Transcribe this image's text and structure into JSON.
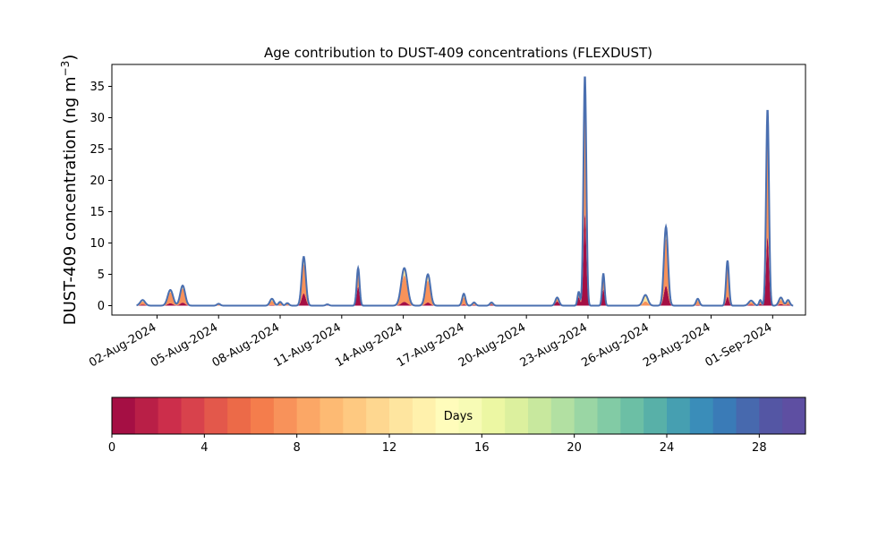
{
  "chart_data": {
    "type": "area",
    "title": "Age contribution to DUST-409 concentrations (FLEXDUST)",
    "ylabel_main": "DUST-409 concentration (ng m",
    "ylabel_sup": "−3",
    "ylabel_close": ")",
    "xlabel": "",
    "ylim": [
      -1.5,
      38.5
    ],
    "xlim_days": [
      -1.2,
      32.6
    ],
    "x_start_date": "2024-08-01",
    "yticks": [
      0,
      5,
      10,
      15,
      20,
      25,
      30,
      35
    ],
    "xticks": [
      {
        "day": 1,
        "label": "02-Aug-2024"
      },
      {
        "day": 4,
        "label": "05-Aug-2024"
      },
      {
        "day": 7,
        "label": "08-Aug-2024"
      },
      {
        "day": 10,
        "label": "11-Aug-2024"
      },
      {
        "day": 13,
        "label": "14-Aug-2024"
      },
      {
        "day": 16,
        "label": "17-Aug-2024"
      },
      {
        "day": 19,
        "label": "20-Aug-2024"
      },
      {
        "day": 22,
        "label": "23-Aug-2024"
      },
      {
        "day": 25,
        "label": "26-Aug-2024"
      },
      {
        "day": 28,
        "label": "29-Aug-2024"
      },
      {
        "day": 31,
        "label": "01-Sep-2024"
      }
    ],
    "total_line_color": "#4a6fb0",
    "peaks": [
      {
        "date": "2024-08-02",
        "day": 0.3,
        "total": 0.9,
        "width": 0.12,
        "age_mix": [
          0.2,
          0.5,
          0.3
        ]
      },
      {
        "date": "2024-08-03",
        "day": 1.65,
        "total": 2.5,
        "width": 0.13,
        "age_mix": [
          0.15,
          0.7,
          0.15
        ]
      },
      {
        "date": "2024-08-04",
        "day": 2.25,
        "total": 3.2,
        "width": 0.12,
        "age_mix": [
          0.15,
          0.7,
          0.15
        ]
      },
      {
        "date": "2024-08-05",
        "day": 4.0,
        "total": 0.3,
        "width": 0.08,
        "age_mix": [
          0.0,
          0.6,
          0.4
        ]
      },
      {
        "date": "2024-08-08",
        "day": 6.6,
        "total": 1.1,
        "width": 0.1,
        "age_mix": [
          0.1,
          0.6,
          0.3
        ]
      },
      {
        "date": "2024-08-08",
        "day": 7.0,
        "total": 0.6,
        "width": 0.08,
        "age_mix": [
          0.1,
          0.6,
          0.3
        ]
      },
      {
        "date": "2024-08-09",
        "day": 7.35,
        "total": 0.4,
        "width": 0.08,
        "age_mix": [
          0.1,
          0.6,
          0.3
        ]
      },
      {
        "date": "2024-08-10",
        "day": 8.15,
        "total": 7.8,
        "width": 0.1,
        "age_mix": [
          0.25,
          0.6,
          0.15
        ]
      },
      {
        "date": "2024-08-11",
        "day": 9.3,
        "total": 0.2,
        "width": 0.08,
        "age_mix": [
          0.3,
          0.5,
          0.2
        ]
      },
      {
        "date": "2024-08-12",
        "day": 10.8,
        "total": 6.0,
        "width": 0.07,
        "age_mix": [
          0.5,
          0.4,
          0.1
        ]
      },
      {
        "date": "2024-08-14",
        "day": 13.05,
        "total": 6.0,
        "width": 0.15,
        "age_mix": [
          0.1,
          0.7,
          0.2
        ]
      },
      {
        "date": "2024-08-15",
        "day": 14.2,
        "total": 5.0,
        "width": 0.12,
        "age_mix": [
          0.1,
          0.7,
          0.2
        ]
      },
      {
        "date": "2024-08-17",
        "day": 15.95,
        "total": 1.9,
        "width": 0.08,
        "age_mix": [
          0.1,
          0.6,
          0.3
        ]
      },
      {
        "date": "2024-08-17",
        "day": 16.45,
        "total": 0.5,
        "width": 0.08,
        "age_mix": [
          0.2,
          0.5,
          0.3
        ]
      },
      {
        "date": "2024-08-18",
        "day": 17.3,
        "total": 0.5,
        "width": 0.08,
        "age_mix": [
          0.3,
          0.5,
          0.2
        ]
      },
      {
        "date": "2024-08-21",
        "day": 20.5,
        "total": 1.3,
        "width": 0.09,
        "age_mix": [
          0.5,
          0.3,
          0.2
        ]
      },
      {
        "date": "2024-08-22",
        "day": 21.55,
        "total": 2.2,
        "width": 0.06,
        "age_mix": [
          0.6,
          0.3,
          0.1
        ]
      },
      {
        "date": "2024-08-23",
        "day": 21.85,
        "total": 36.8,
        "width": 0.07,
        "age_mix": [
          0.4,
          0.5,
          0.1
        ]
      },
      {
        "date": "2024-08-23",
        "day": 22.75,
        "total": 5.1,
        "width": 0.06,
        "age_mix": [
          0.5,
          0.4,
          0.1
        ]
      },
      {
        "date": "2024-08-26",
        "day": 24.8,
        "total": 1.7,
        "width": 0.12,
        "age_mix": [
          0.0,
          0.4,
          0.6
        ]
      },
      {
        "date": "2024-08-27",
        "day": 25.8,
        "total": 12.6,
        "width": 0.1,
        "age_mix": [
          0.25,
          0.6,
          0.15
        ]
      },
      {
        "date": "2024-08-29",
        "day": 27.35,
        "total": 1.1,
        "width": 0.08,
        "age_mix": [
          0.1,
          0.6,
          0.3
        ]
      },
      {
        "date": "2024-08-30",
        "day": 28.8,
        "total": 7.2,
        "width": 0.07,
        "age_mix": [
          0.2,
          0.7,
          0.1
        ]
      },
      {
        "date": "2024-08-31",
        "day": 29.95,
        "total": 0.8,
        "width": 0.12,
        "age_mix": [
          0.2,
          0.5,
          0.3
        ]
      },
      {
        "date": "2024-09-01",
        "day": 30.4,
        "total": 0.9,
        "width": 0.06,
        "age_mix": [
          0.3,
          0.5,
          0.2
        ]
      },
      {
        "date": "2024-09-01",
        "day": 30.75,
        "total": 31.4,
        "width": 0.07,
        "age_mix": [
          0.35,
          0.55,
          0.1
        ]
      },
      {
        "date": "2024-09-02",
        "day": 31.4,
        "total": 1.3,
        "width": 0.1,
        "age_mix": [
          0.2,
          0.5,
          0.3
        ]
      },
      {
        "date": "2024-09-02",
        "day": 31.75,
        "total": 0.9,
        "width": 0.08,
        "age_mix": [
          0.2,
          0.5,
          0.3
        ]
      }
    ],
    "series_start_day": 0.0,
    "series_end_day": 32.0,
    "colorbar": {
      "label": "Days",
      "min": 0,
      "max": 30,
      "ticks": [
        0,
        4,
        8,
        12,
        16,
        20,
        24,
        28
      ],
      "colors": [
        "#a50f44",
        "#b91f47",
        "#cc2e4b",
        "#d8424c",
        "#e3584b",
        "#ec6a48",
        "#f47d4c",
        "#f8925a",
        "#fba766",
        "#fdba73",
        "#fec981",
        "#fed790",
        "#fee59f",
        "#fff1ac",
        "#fffcbb",
        "#f7fbb5",
        "#ecf7a3",
        "#dcf09e",
        "#c8e89e",
        "#b2e0a2",
        "#9ad6a4",
        "#82cba5",
        "#6cbfa5",
        "#58b0a8",
        "#469fb1",
        "#3a8db9",
        "#3a7bb7",
        "#4769ae",
        "#5456a4",
        "#5e4fa2"
      ]
    }
  }
}
